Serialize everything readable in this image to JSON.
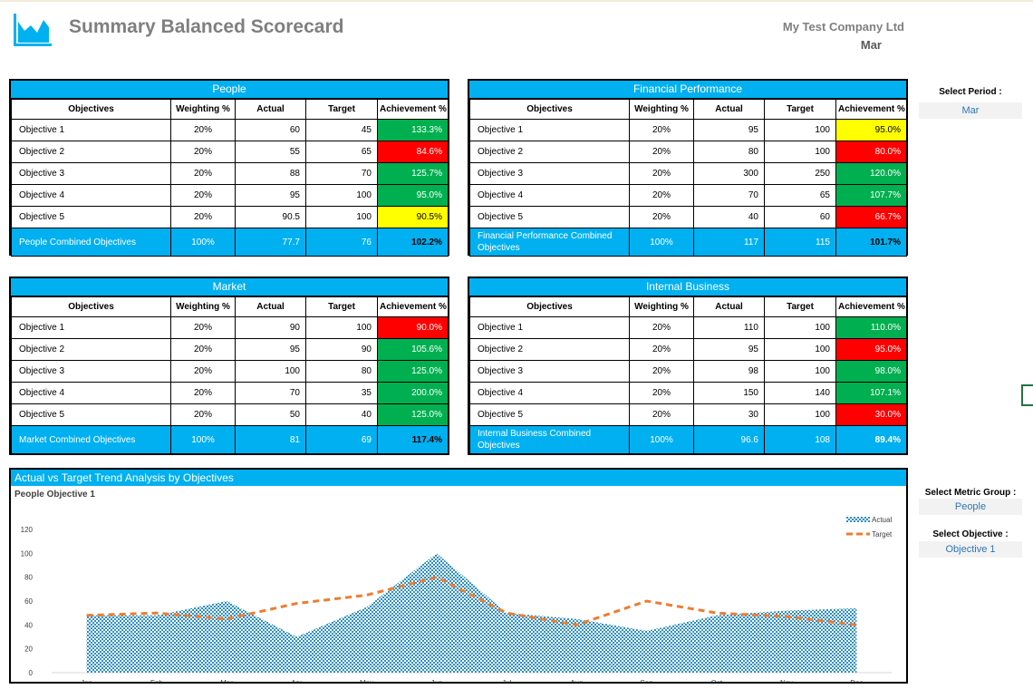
{
  "header": {
    "title": "Summary Balanced Scorecard",
    "company": "My Test Company Ltd",
    "period": "Mar"
  },
  "columns": [
    "Objectives",
    "Weighting %",
    "Actual",
    "Target",
    "Achievement %"
  ],
  "panels": [
    {
      "title": "People",
      "rows": [
        {
          "objective": "Objective 1",
          "weight": "20%",
          "actual": "60",
          "target": "45",
          "ach": "133.3%",
          "status": "green"
        },
        {
          "objective": "Objective 2",
          "weight": "20%",
          "actual": "55",
          "target": "65",
          "ach": "84.6%",
          "status": "red"
        },
        {
          "objective": "Objective 3",
          "weight": "20%",
          "actual": "88",
          "target": "70",
          "ach": "125.7%",
          "status": "green"
        },
        {
          "objective": "Objective 4",
          "weight": "20%",
          "actual": "95",
          "target": "100",
          "ach": "95.0%",
          "status": "green"
        },
        {
          "objective": "Objective 5",
          "weight": "20%",
          "actual": "90.5",
          "target": "100",
          "ach": "90.5%",
          "status": "yellow"
        }
      ],
      "total": {
        "objective": "People Combined Objectives",
        "weight": "100%",
        "actual": "77.7",
        "target": "76",
        "ach": "102.2%",
        "status": "green"
      }
    },
    {
      "title": "Financial Performance",
      "rows": [
        {
          "objective": "Objective 1",
          "weight": "20%",
          "actual": "95",
          "target": "100",
          "ach": "95.0%",
          "status": "yellow"
        },
        {
          "objective": "Objective 2",
          "weight": "20%",
          "actual": "80",
          "target": "100",
          "ach": "80.0%",
          "status": "red"
        },
        {
          "objective": "Objective 3",
          "weight": "20%",
          "actual": "300",
          "target": "250",
          "ach": "120.0%",
          "status": "green"
        },
        {
          "objective": "Objective 4",
          "weight": "20%",
          "actual": "70",
          "target": "65",
          "ach": "107.7%",
          "status": "green"
        },
        {
          "objective": "Objective 5",
          "weight": "20%",
          "actual": "40",
          "target": "60",
          "ach": "66.7%",
          "status": "red"
        }
      ],
      "total": {
        "objective": "Financial Performance Combined Objectives",
        "weight": "100%",
        "actual": "117",
        "target": "115",
        "ach": "101.7%",
        "status": "green"
      }
    },
    {
      "title": "Market",
      "rows": [
        {
          "objective": "Objective 1",
          "weight": "20%",
          "actual": "90",
          "target": "100",
          "ach": "90.0%",
          "status": "red"
        },
        {
          "objective": "Objective 2",
          "weight": "20%",
          "actual": "95",
          "target": "90",
          "ach": "105.6%",
          "status": "green"
        },
        {
          "objective": "Objective 3",
          "weight": "20%",
          "actual": "100",
          "target": "80",
          "ach": "125.0%",
          "status": "green"
        },
        {
          "objective": "Objective 4",
          "weight": "20%",
          "actual": "70",
          "target": "35",
          "ach": "200.0%",
          "status": "green"
        },
        {
          "objective": "Objective 5",
          "weight": "20%",
          "actual": "50",
          "target": "40",
          "ach": "125.0%",
          "status": "green"
        }
      ],
      "total": {
        "objective": "Market Combined Objectives",
        "weight": "100%",
        "actual": "81",
        "target": "69",
        "ach": "117.4%",
        "status": "green"
      }
    },
    {
      "title": "Internal Business",
      "rows": [
        {
          "objective": "Objective 1",
          "weight": "20%",
          "actual": "110",
          "target": "100",
          "ach": "110.0%",
          "status": "green"
        },
        {
          "objective": "Objective 2",
          "weight": "20%",
          "actual": "95",
          "target": "100",
          "ach": "95.0%",
          "status": "red"
        },
        {
          "objective": "Objective 3",
          "weight": "20%",
          "actual": "98",
          "target": "100",
          "ach": "98.0%",
          "status": "green"
        },
        {
          "objective": "Objective 4",
          "weight": "20%",
          "actual": "150",
          "target": "140",
          "ach": "107.1%",
          "status": "green"
        },
        {
          "objective": "Objective 5",
          "weight": "20%",
          "actual": "30",
          "target": "100",
          "ach": "30.0%",
          "status": "red"
        }
      ],
      "total": {
        "objective": "Internal Business Combined Objectives",
        "weight": "100%",
        "actual": "96.6",
        "target": "108",
        "ach": "89.4%",
        "status": "red"
      }
    }
  ],
  "side": {
    "period_label": "Select Period :",
    "period_value": "Mar",
    "metric_label": "Select Metric Group :",
    "metric_value": "People",
    "objective_label": "Select Objective :",
    "objective_value": "Objective 1"
  },
  "chart_panel": {
    "title": "Actual vs Target Trend Analysis by Objectives",
    "subtitle": "People Objective 1"
  },
  "chart_data": {
    "type": "area",
    "title": "People Objective 1",
    "categories": [
      "Jan",
      "Feb",
      "Mar",
      "Apr",
      "May",
      "Jun",
      "Jul",
      "Aug",
      "Sep",
      "Oct",
      "Nov",
      "Dec"
    ],
    "series": [
      {
        "name": "Actual",
        "type": "area",
        "values": [
          48,
          48,
          60,
          30,
          55,
          100,
          50,
          45,
          35,
          48,
          52,
          54
        ]
      },
      {
        "name": "Target",
        "type": "line",
        "values": [
          48,
          50,
          45,
          58,
          65,
          80,
          50,
          40,
          60,
          50,
          47,
          40
        ]
      }
    ],
    "yticks": [
      "0",
      "20",
      "40",
      "60",
      "80",
      "100",
      "120"
    ],
    "ylim": [
      0,
      120
    ],
    "legend": "top-right",
    "grid": false,
    "colors": {
      "actual": "#2e8fc4",
      "target": "#ed7d31"
    }
  },
  "colors": {
    "header_blue": "#00b0f0",
    "green": "#00b050",
    "red": "#ff0000",
    "yellow": "#ffff00"
  }
}
